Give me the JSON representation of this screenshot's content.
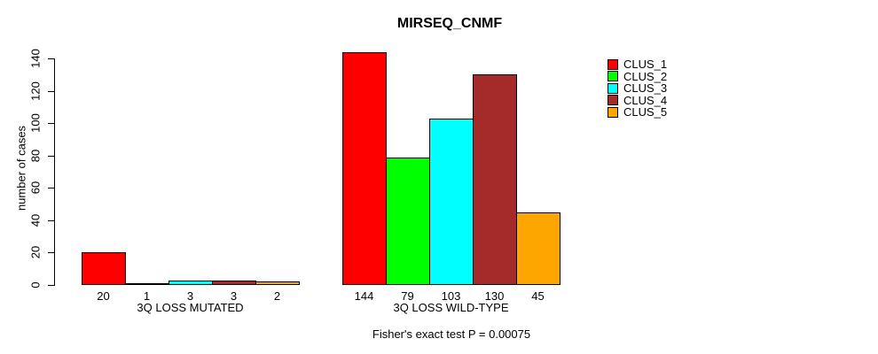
{
  "chart_data": {
    "type": "bar",
    "title": "MIRSEQ_CNMF",
    "ylabel": "number of cases",
    "xlabel": "",
    "ylim": [
      0,
      140
    ],
    "yticks": [
      0,
      20,
      40,
      60,
      80,
      100,
      120,
      140
    ],
    "grid": false,
    "legend_position": "right",
    "categories": [
      "3Q LOSS MUTATED",
      "3Q LOSS WILD-TYPE"
    ],
    "series": [
      {
        "name": "CLUS_1",
        "color": "#FF0000",
        "values": [
          20,
          144
        ]
      },
      {
        "name": "CLUS_2",
        "color": "#00FF00",
        "values": [
          1,
          79
        ]
      },
      {
        "name": "CLUS_3",
        "color": "#00FFFF",
        "values": [
          3,
          103
        ]
      },
      {
        "name": "CLUS_4",
        "color": "#A52A2A",
        "values": [
          3,
          130
        ]
      },
      {
        "name": "CLUS_5",
        "color": "#FFA500",
        "values": [
          2,
          45
        ]
      }
    ],
    "bar_value_labels": true,
    "annotation": "Fisher's exact test P = 0.00075"
  }
}
